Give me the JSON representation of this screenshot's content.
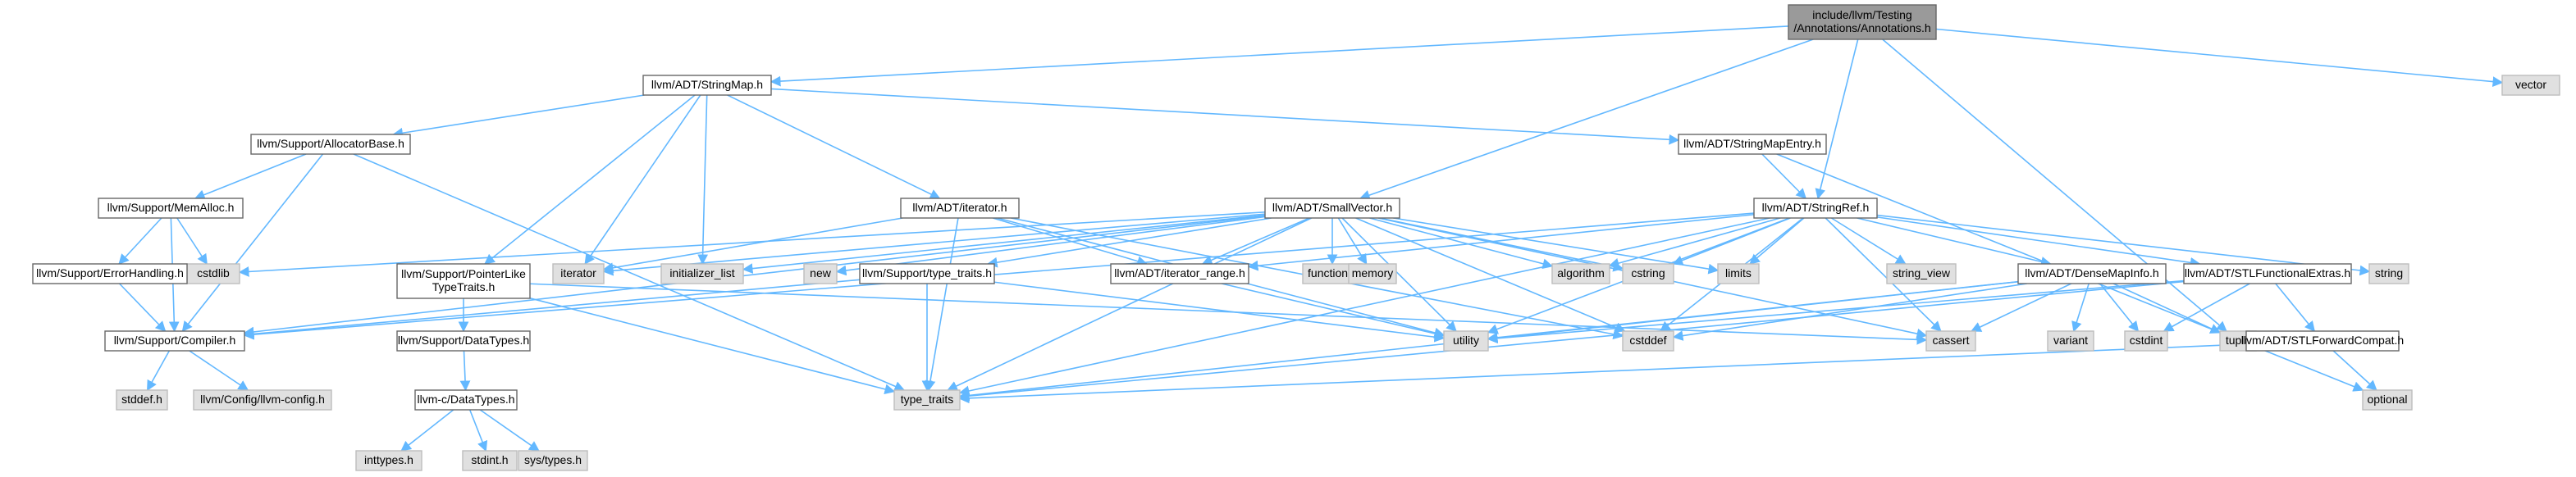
{
  "graph": {
    "nodes": [
      {
        "id": "root",
        "lines": [
          "include/llvm/Testing",
          "/Annotations/Annotations.h"
        ],
        "kind": "root"
      },
      {
        "id": "stringmap",
        "lines": [
          "llvm/ADT/StringMap.h"
        ],
        "kind": "file"
      },
      {
        "id": "vector",
        "lines": [
          "vector"
        ],
        "kind": "sys"
      },
      {
        "id": "allocbase",
        "lines": [
          "llvm/Support/AllocatorBase.h"
        ],
        "kind": "file"
      },
      {
        "id": "stringmapentry",
        "lines": [
          "llvm/ADT/StringMapEntry.h"
        ],
        "kind": "file"
      },
      {
        "id": "memalloc",
        "lines": [
          "llvm/Support/MemAlloc.h"
        ],
        "kind": "file"
      },
      {
        "id": "iterator_h",
        "lines": [
          "llvm/ADT/iterator.h"
        ],
        "kind": "file"
      },
      {
        "id": "smallvector",
        "lines": [
          "llvm/ADT/SmallVector.h"
        ],
        "kind": "file"
      },
      {
        "id": "stringref",
        "lines": [
          "llvm/ADT/StringRef.h"
        ],
        "kind": "file"
      },
      {
        "id": "cstdlib",
        "lines": [
          "cstdlib"
        ],
        "kind": "sys"
      },
      {
        "id": "iterator",
        "lines": [
          "iterator"
        ],
        "kind": "sys"
      },
      {
        "id": "initlist",
        "lines": [
          "initializer_list"
        ],
        "kind": "sys"
      },
      {
        "id": "new",
        "lines": [
          "new"
        ],
        "kind": "sys"
      },
      {
        "id": "functional",
        "lines": [
          "functional"
        ],
        "kind": "sys"
      },
      {
        "id": "memory",
        "lines": [
          "memory"
        ],
        "kind": "sys"
      },
      {
        "id": "algorithm",
        "lines": [
          "algorithm"
        ],
        "kind": "sys"
      },
      {
        "id": "cstring",
        "lines": [
          "cstring"
        ],
        "kind": "sys"
      },
      {
        "id": "limits",
        "lines": [
          "limits"
        ],
        "kind": "sys"
      },
      {
        "id": "string_view",
        "lines": [
          "string_view"
        ],
        "kind": "sys"
      },
      {
        "id": "string",
        "lines": [
          "string"
        ],
        "kind": "sys"
      },
      {
        "id": "errhandling",
        "lines": [
          "llvm/Support/ErrorHandling.h"
        ],
        "kind": "file"
      },
      {
        "id": "pointerlike",
        "lines": [
          "llvm/Support/PointerLike",
          "TypeTraits.h"
        ],
        "kind": "file"
      },
      {
        "id": "typetraits_h",
        "lines": [
          "llvm/Support/type_traits.h"
        ],
        "kind": "file"
      },
      {
        "id": "iterrange",
        "lines": [
          "llvm/ADT/iterator_range.h"
        ],
        "kind": "file"
      },
      {
        "id": "densemapinfo",
        "lines": [
          "llvm/ADT/DenseMapInfo.h"
        ],
        "kind": "file"
      },
      {
        "id": "stlfuncextras",
        "lines": [
          "llvm/ADT/STLFunctionalExtras.h"
        ],
        "kind": "file"
      },
      {
        "id": "compiler",
        "lines": [
          "llvm/Support/Compiler.h"
        ],
        "kind": "file"
      },
      {
        "id": "utility",
        "lines": [
          "utility"
        ],
        "kind": "sys"
      },
      {
        "id": "cstddef",
        "lines": [
          "cstddef"
        ],
        "kind": "sys"
      },
      {
        "id": "cassert",
        "lines": [
          "cassert"
        ],
        "kind": "sys"
      },
      {
        "id": "variant",
        "lines": [
          "variant"
        ],
        "kind": "sys"
      },
      {
        "id": "cstdint",
        "lines": [
          "cstdint"
        ],
        "kind": "sys"
      },
      {
        "id": "tuple",
        "lines": [
          "tuple"
        ],
        "kind": "sys"
      },
      {
        "id": "datatypes",
        "lines": [
          "llvm/Support/DataTypes.h"
        ],
        "kind": "file"
      },
      {
        "id": "stlfwdcompat",
        "lines": [
          "llvm/ADT/STLForwardCompat.h"
        ],
        "kind": "file"
      },
      {
        "id": "optional",
        "lines": [
          "optional"
        ],
        "kind": "sys"
      },
      {
        "id": "type_traits",
        "lines": [
          "type_traits"
        ],
        "kind": "sys"
      },
      {
        "id": "stddef",
        "lines": [
          "stddef.h"
        ],
        "kind": "sys"
      },
      {
        "id": "llvmconfig",
        "lines": [
          "llvm/Config/llvm-config.h"
        ],
        "kind": "sys"
      },
      {
        "id": "c_datatypes",
        "lines": [
          "llvm-c/DataTypes.h"
        ],
        "kind": "file"
      },
      {
        "id": "inttypes",
        "lines": [
          "inttypes.h"
        ],
        "kind": "sys"
      },
      {
        "id": "stdint",
        "lines": [
          "stdint.h"
        ],
        "kind": "sys"
      },
      {
        "id": "systypes",
        "lines": [
          "sys/types.h"
        ],
        "kind": "sys"
      }
    ],
    "edges": [
      [
        "root",
        "stringmap"
      ],
      [
        "root",
        "vector"
      ],
      [
        "root",
        "smallvector"
      ],
      [
        "root",
        "stringref"
      ],
      [
        "root",
        "tuple"
      ],
      [
        "stringmap",
        "allocbase"
      ],
      [
        "stringmap",
        "stringmapentry"
      ],
      [
        "stringmap",
        "iterator_h"
      ],
      [
        "stringmap",
        "pointerlike"
      ],
      [
        "stringmap",
        "iterator"
      ],
      [
        "stringmap",
        "initlist"
      ],
      [
        "allocbase",
        "memalloc"
      ],
      [
        "allocbase",
        "compiler"
      ],
      [
        "allocbase",
        "type_traits"
      ],
      [
        "memalloc",
        "cstdlib"
      ],
      [
        "memalloc",
        "errhandling"
      ],
      [
        "memalloc",
        "compiler"
      ],
      [
        "errhandling",
        "compiler"
      ],
      [
        "stringmapentry",
        "stringref"
      ],
      [
        "stringmapentry",
        "optional"
      ],
      [
        "iterator_h",
        "iterrange"
      ],
      [
        "iterator_h",
        "iterator"
      ],
      [
        "iterator_h",
        "cstddef"
      ],
      [
        "iterator_h",
        "utility"
      ],
      [
        "iterator_h",
        "type_traits"
      ],
      [
        "smallvector",
        "compiler"
      ],
      [
        "smallvector",
        "typetraits_h"
      ],
      [
        "smallvector",
        "cstdlib"
      ],
      [
        "smallvector",
        "iterator"
      ],
      [
        "smallvector",
        "initlist"
      ],
      [
        "smallvector",
        "new"
      ],
      [
        "smallvector",
        "functional"
      ],
      [
        "smallvector",
        "memory"
      ],
      [
        "smallvector",
        "algorithm"
      ],
      [
        "smallvector",
        "cstring"
      ],
      [
        "smallvector",
        "limits"
      ],
      [
        "smallvector",
        "utility"
      ],
      [
        "smallvector",
        "cstddef"
      ],
      [
        "smallvector",
        "cassert"
      ],
      [
        "smallvector",
        "type_traits"
      ],
      [
        "smallvector",
        "iterrange"
      ],
      [
        "stringref",
        "densemapinfo"
      ],
      [
        "stringref",
        "stlfuncextras"
      ],
      [
        "stringref",
        "iterrange"
      ],
      [
        "stringref",
        "compiler"
      ],
      [
        "stringref",
        "algorithm"
      ],
      [
        "stringref",
        "cassert"
      ],
      [
        "stringref",
        "cstddef"
      ],
      [
        "stringref",
        "cstring"
      ],
      [
        "stringref",
        "limits"
      ],
      [
        "stringref",
        "string"
      ],
      [
        "stringref",
        "string_view"
      ],
      [
        "stringref",
        "type_traits"
      ],
      [
        "stringref",
        "utility"
      ],
      [
        "pointerlike",
        "datatypes"
      ],
      [
        "pointerlike",
        "cassert"
      ],
      [
        "pointerlike",
        "type_traits"
      ],
      [
        "typetraits_h",
        "compiler"
      ],
      [
        "typetraits_h",
        "type_traits"
      ],
      [
        "typetraits_h",
        "utility"
      ],
      [
        "iterrange",
        "utility"
      ],
      [
        "densemapinfo",
        "cassert"
      ],
      [
        "densemapinfo",
        "cstddef"
      ],
      [
        "densemapinfo",
        "cstdint"
      ],
      [
        "densemapinfo",
        "tuple"
      ],
      [
        "densemapinfo",
        "type_traits"
      ],
      [
        "densemapinfo",
        "utility"
      ],
      [
        "densemapinfo",
        "variant"
      ],
      [
        "stlfuncextras",
        "stlfwdcompat"
      ],
      [
        "stlfuncextras",
        "cstdint"
      ],
      [
        "stlfuncextras",
        "type_traits"
      ],
      [
        "stlfuncextras",
        "utility"
      ],
      [
        "stlfwdcompat",
        "optional"
      ],
      [
        "stlfwdcompat",
        "type_traits"
      ],
      [
        "compiler",
        "stddef"
      ],
      [
        "compiler",
        "llvmconfig"
      ],
      [
        "datatypes",
        "c_datatypes"
      ],
      [
        "c_datatypes",
        "inttypes"
      ],
      [
        "c_datatypes",
        "stdint"
      ],
      [
        "c_datatypes",
        "systypes"
      ]
    ]
  }
}
